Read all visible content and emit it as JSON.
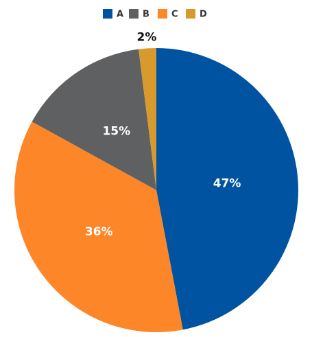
{
  "chart_data": {
    "type": "pie",
    "categories": [
      "A",
      "B",
      "C",
      "D"
    ],
    "values": [
      47,
      15,
      36,
      2
    ],
    "value_labels": [
      "47%",
      "15%",
      "36%",
      "2%"
    ],
    "colors": [
      "#0053a1",
      "#5f6062",
      "#fd8628",
      "#d99a2d"
    ],
    "legend": "top"
  }
}
